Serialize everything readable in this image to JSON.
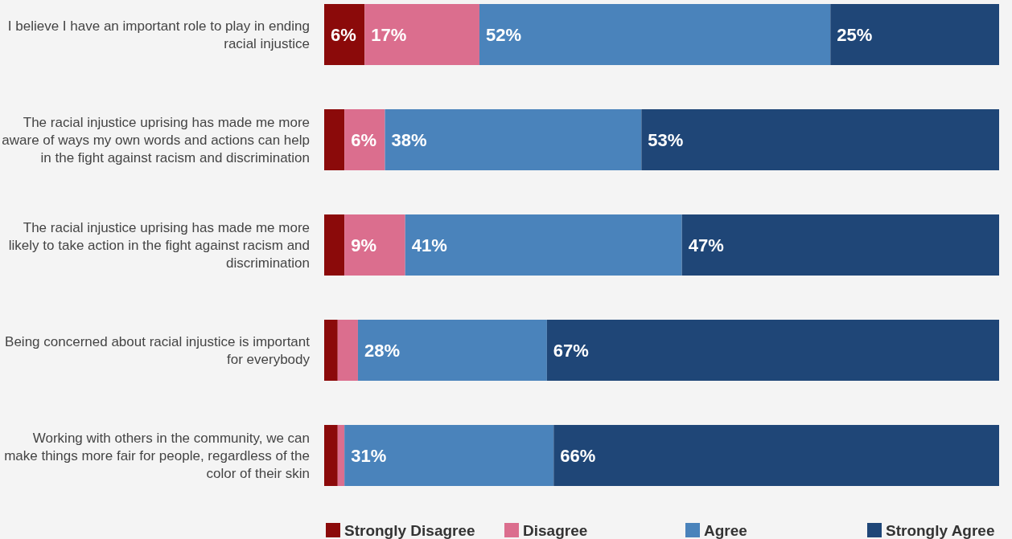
{
  "chart_data": {
    "type": "bar",
    "orientation": "horizontal",
    "stacked": true,
    "xlim": [
      0,
      100
    ],
    "tick_labels": "y",
    "legend": "bottom",
    "categories": [
      "I believe I have an important role to play in ending racial injustice",
      "The racial injustice uprising has made me more aware of ways my own words and actions can help in the fight against racism and discrimination",
      "The racial injustice uprising has made me more likely to take action in the fight against racism and discrimination",
      "Being concerned about racial injustice is important for everybody",
      "Working with others in the community, we can make things more fair for people, regardless of the color of their skin"
    ],
    "series": [
      {
        "name": "Strongly Disagree",
        "color": "#8b0a0a",
        "values": [
          6,
          3,
          3,
          2,
          2
        ],
        "value_labels": [
          "6%",
          null,
          null,
          null,
          null
        ]
      },
      {
        "name": "Disagree",
        "color": "#db6e8e",
        "values": [
          17,
          6,
          9,
          3,
          1
        ],
        "value_labels": [
          "17%",
          "6%",
          "9%",
          null,
          null
        ]
      },
      {
        "name": "Agree",
        "color": "#4a83bb",
        "values": [
          52,
          38,
          41,
          28,
          31
        ],
        "value_labels": [
          "52%",
          "38%",
          "41%",
          "28%",
          "31%"
        ]
      },
      {
        "name": "Strongly Agree",
        "color": "#1f4677",
        "values": [
          25,
          53,
          47,
          67,
          66
        ],
        "value_labels": [
          "25%",
          "53%",
          "47%",
          "67%",
          "66%"
        ]
      }
    ]
  }
}
